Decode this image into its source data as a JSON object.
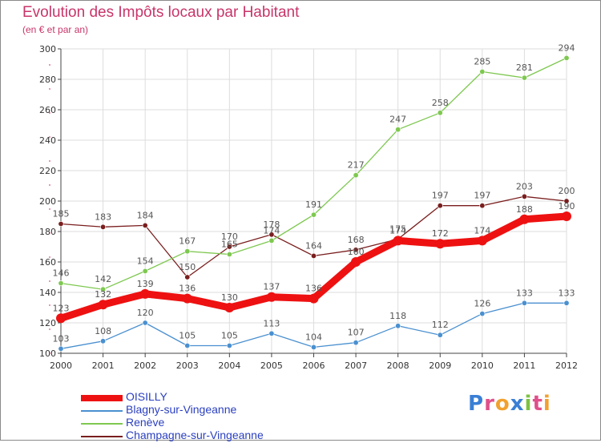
{
  "header": {
    "title": "Evolution des Impôts locaux par Habitant",
    "subtitle": "(en € et par an)"
  },
  "logo": {
    "text": "Proxiti",
    "colors": [
      "#3a7fd5",
      "#e0508a",
      "#f2a12e",
      "#3a7fd5",
      "#7cc242",
      "#e0508a",
      "#f2a12e"
    ]
  },
  "colors": {
    "text": "#c8356a",
    "axis": "#444444",
    "grid": "#dddddd",
    "label": "#555555"
  },
  "chart_data": {
    "type": "line",
    "title": "Evolution des Impôts locaux par Habitant",
    "subtitle": "(en € et par an)",
    "x": [
      "2000",
      "2001",
      "2002",
      "2003",
      "2004",
      "2005",
      "2006",
      "2007",
      "2008",
      "2009",
      "2010",
      "2011",
      "2012"
    ],
    "ylim": [
      100,
      300
    ],
    "yticks": [
      100,
      120,
      140,
      160,
      180,
      200,
      220,
      240,
      260,
      280,
      300
    ],
    "grid": true,
    "legend": "bottom-left",
    "series": [
      {
        "name": "OISILLY",
        "color": "#ee1111",
        "values": [
          123,
          132,
          139,
          136,
          130,
          137,
          136,
          160,
          174,
          172,
          174,
          188,
          190
        ],
        "labels": [
          "123",
          "132",
          "139",
          "136",
          "130",
          "137",
          "136",
          "160",
          "174",
          "172",
          "174",
          "188",
          "190"
        ]
      },
      {
        "name": "Blagny-sur-Vingeanne",
        "color": "#4a90d0",
        "values": [
          103,
          108,
          120,
          105,
          105,
          113,
          104,
          107,
          118,
          112,
          126,
          133,
          133
        ],
        "labels": [
          "103",
          "108",
          "120",
          "105",
          "105",
          "113",
          "104",
          "107",
          "118",
          "112",
          "126",
          "133",
          "133"
        ]
      },
      {
        "name": "Renève",
        "color": "#7ec850",
        "values": [
          146,
          142,
          154,
          167,
          165,
          174,
          191,
          217,
          247,
          258,
          285,
          281,
          294
        ],
        "labels": [
          "146",
          "142",
          "154",
          "167",
          "165",
          "174",
          "191",
          "217",
          "247",
          "258",
          "285",
          "281",
          "294"
        ]
      },
      {
        "name": "Champagne-sur-Vingeanne",
        "color": "#7a1e1e",
        "values": [
          185,
          183,
          184,
          150,
          170,
          178,
          164,
          168,
          175,
          197,
          197,
          203,
          200
        ],
        "labels": [
          "185",
          "183",
          "184",
          "150",
          "170",
          "178",
          "164",
          "168",
          "175",
          "197",
          "197",
          "203",
          "200"
        ]
      }
    ]
  }
}
